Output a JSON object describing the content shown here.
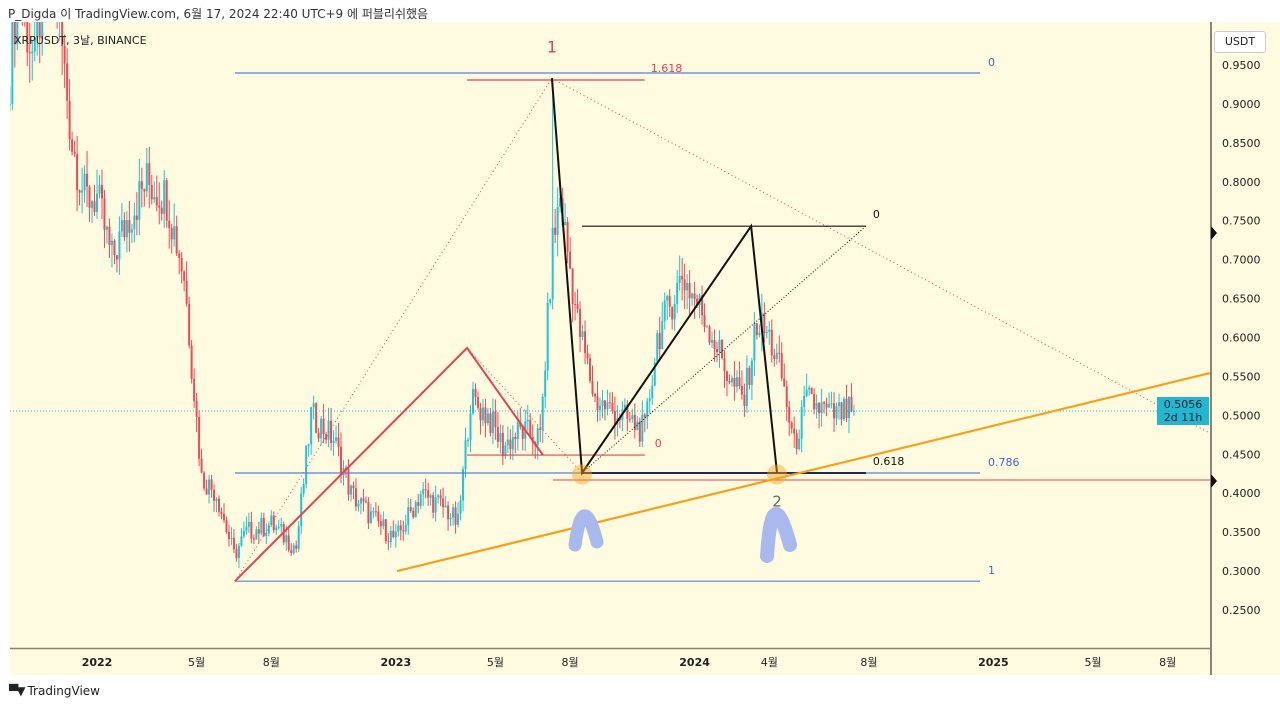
{
  "header": {
    "published_by": "P_Digda 이 TradingView.com, 6월 17, 2024 22:40 UTC+9 에 퍼블리쉬했음"
  },
  "symbol": {
    "label": "XRPUSDT, 3날, BINANCE"
  },
  "price_axis": {
    "currency": "USDT",
    "current_price": "0.5056",
    "countdown": "2d 11h"
  },
  "footer": {
    "logo_mark": "TV",
    "brand": "TradingView"
  },
  "colors": {
    "up": "#22c3d6",
    "down": "#ef4b57",
    "background": "#fffbe0",
    "fib_blue": "#5b7fd6",
    "orange": "#f5a21a",
    "red": "#e8424f",
    "arch": "#a9b9ee"
  },
  "chart_data": {
    "type": "candlestick",
    "title": "XRPUSDT, 3날, BINANCE",
    "timeframe": "3D",
    "x_unit": "months since 2022-01",
    "ylim": [
      0.21,
      0.97
    ],
    "yticks": [
      "0.9500",
      "0.9000",
      "0.8500",
      "0.8000",
      "0.7500",
      "0.7000",
      "0.6500",
      "0.6000",
      "0.5500",
      "0.5000",
      "0.4500",
      "0.4000",
      "0.3500",
      "0.3000",
      "0.2500"
    ],
    "xticks": [
      {
        "m": 0,
        "label": "2022",
        "bold": true
      },
      {
        "m": 4,
        "label": "5월"
      },
      {
        "m": 7,
        "label": "8월"
      },
      {
        "m": 12,
        "label": "2023",
        "bold": true
      },
      {
        "m": 16,
        "label": "5월"
      },
      {
        "m": 19,
        "label": "8월"
      },
      {
        "m": 24,
        "label": "2024",
        "bold": true
      },
      {
        "m": 27,
        "label": "4월"
      },
      {
        "m": 31,
        "label": "8월"
      },
      {
        "m": 36,
        "label": "2025",
        "bold": true
      },
      {
        "m": 40,
        "label": "5월"
      },
      {
        "m": 43,
        "label": "8월"
      }
    ],
    "close_path": [
      [
        -3.6,
        0.9
      ],
      [
        -3.2,
        1.05
      ],
      [
        -2.5,
        0.95
      ],
      [
        -2,
        1.1
      ],
      [
        -1.5,
        1.0
      ],
      [
        -1,
        0.85
      ],
      [
        -0.5,
        0.78
      ],
      [
        0,
        0.78
      ],
      [
        0.6,
        0.7
      ],
      [
        1.2,
        0.75
      ],
      [
        2,
        0.8
      ],
      [
        2.8,
        0.78
      ],
      [
        3.5,
        0.68
      ],
      [
        4.2,
        0.42
      ],
      [
        4.8,
        0.4
      ],
      [
        5.5,
        0.32
      ],
      [
        6,
        0.35
      ],
      [
        7,
        0.36
      ],
      [
        8,
        0.33
      ],
      [
        8.6,
        0.5
      ],
      [
        9.5,
        0.47
      ],
      [
        10.2,
        0.4
      ],
      [
        11,
        0.37
      ],
      [
        12,
        0.34
      ],
      [
        13,
        0.4
      ],
      [
        14,
        0.38
      ],
      [
        14.5,
        0.36
      ],
      [
        15,
        0.52
      ],
      [
        15.7,
        0.5
      ],
      [
        16.3,
        0.46
      ],
      [
        17,
        0.48
      ],
      [
        17.8,
        0.47
      ],
      [
        18.3,
        0.72
      ],
      [
        18.6,
        0.78
      ],
      [
        19.3,
        0.62
      ],
      [
        20,
        0.52
      ],
      [
        21,
        0.5
      ],
      [
        22,
        0.48
      ],
      [
        22.5,
        0.6
      ],
      [
        23.5,
        0.68
      ],
      [
        24.5,
        0.62
      ],
      [
        25.5,
        0.54
      ],
      [
        26,
        0.52
      ],
      [
        26.5,
        0.62
      ],
      [
        27,
        0.6
      ],
      [
        27.5,
        0.55
      ],
      [
        28,
        0.46
      ],
      [
        28.5,
        0.52
      ],
      [
        29.5,
        0.5
      ],
      [
        30.4,
        0.5056
      ]
    ],
    "spike_high": {
      "m": 18.3,
      "price": 0.933
    },
    "last_price": 0.5056,
    "annotations": {
      "fib_levels": [
        {
          "price": 0.9397,
          "label": "0",
          "from": 5.54,
          "to": 35.46
        },
        {
          "price": 0.426,
          "label": "0.786",
          "from": 5.54,
          "to": 35.46
        },
        {
          "price": 0.287,
          "label": "1",
          "from": 5.54,
          "to": 35.46
        }
      ],
      "red_levels": [
        {
          "price": 0.9307,
          "label": "1.618",
          "from": 14.86,
          "to": 22.0
        },
        {
          "price": 0.449,
          "label": "0",
          "from": 14.86,
          "to": 22.0
        }
      ],
      "black_levels": [
        {
          "price": 0.743,
          "label": "0",
          "from": 19.48,
          "to": 30.88
        },
        {
          "price": 0.426,
          "label": "0.618",
          "from": 19.48,
          "to": 30.88
        }
      ],
      "red_horizontal": {
        "price": 0.417,
        "from": 18.31
      },
      "red_zigzag": [
        [
          5.54,
          0.287
        ],
        [
          14.86,
          0.5866
        ],
        [
          17.91,
          0.449
        ]
      ],
      "black_zigzag": [
        [
          18.27,
          0.933
        ],
        [
          19.48,
          0.426
        ],
        [
          26.27,
          0.743
        ],
        [
          27.31,
          0.426
        ]
      ],
      "black_dotted": [
        [
          19.48,
          0.426
        ],
        [
          30.88,
          0.743
        ]
      ],
      "red_dotted": [
        [
          [
            5.54,
            0.287
          ],
          [
            18.27,
            0.933
          ]
        ],
        [
          [
            18.27,
            0.933
          ],
          [
            44.7,
            0.477
          ]
        ],
        [
          [
            14.86,
            0.5866
          ],
          [
            19.48,
            0.426
          ]
        ]
      ],
      "orange_trendline": [
        [
          12.05,
          0.3
        ],
        [
          44.7,
          0.5544
        ]
      ],
      "pivot_circles": [
        [
          19.48,
          0.424
        ],
        [
          27.31,
          0.424
        ]
      ],
      "point_labels": [
        {
          "label": "1",
          "m": 18.27,
          "price": 0.966
        },
        {
          "label": "2",
          "m": 27.31,
          "price": 0.383
        }
      ]
    }
  }
}
